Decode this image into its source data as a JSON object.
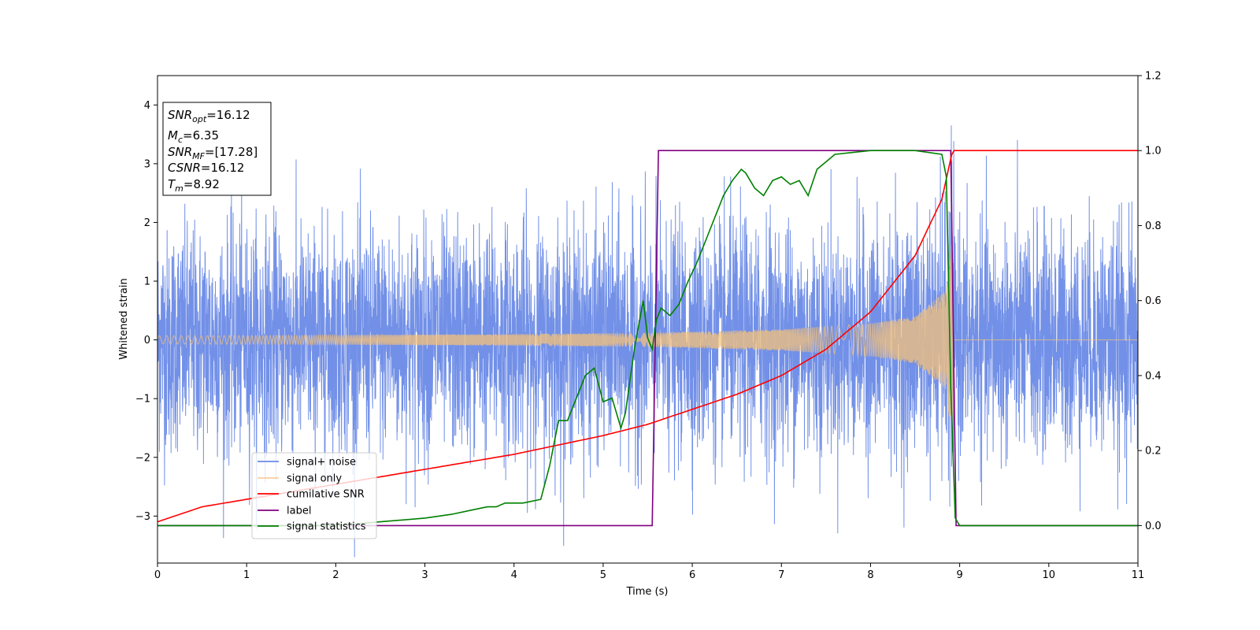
{
  "chart_data": {
    "type": "line",
    "xlabel": "Time (s)",
    "ylabel": "Whitened strain",
    "xlim": [
      0,
      11
    ],
    "ylim_left": [
      -3.8,
      4.5
    ],
    "ylim_right": [
      -0.1,
      1.2
    ],
    "x_ticks": [
      0,
      1,
      2,
      3,
      4,
      5,
      6,
      7,
      8,
      9,
      10,
      11
    ],
    "y_ticks_left": [
      -3,
      -2,
      -1,
      0,
      1,
      2,
      3,
      4
    ],
    "y_tick_labels_left": [
      "−3",
      "−2",
      "−1",
      "0",
      "1",
      "2",
      "3",
      "4"
    ],
    "y_ticks_right": [
      0.0,
      0.2,
      0.4,
      0.6,
      0.8,
      1.0,
      1.2
    ],
    "y_tick_labels_right": [
      "0.0",
      "0.2",
      "0.4",
      "0.6",
      "0.8",
      "1.0",
      "1.2"
    ],
    "grid": false,
    "legend_position": "lower-left",
    "info_box": [
      {
        "main": "SNR",
        "sub": "opt",
        "rest": "=16.12"
      },
      {
        "main": "M",
        "sub": "c",
        "rest": "=6.35"
      },
      {
        "main": "SNR",
        "sub": "MF",
        "rest": "=[17.28]"
      },
      {
        "main": "CSNR",
        "sub": "",
        "rest": "=16.12"
      },
      {
        "main": "T",
        "sub": "m",
        "rest": "=8.92"
      }
    ],
    "series": [
      {
        "name": "signal+ noise",
        "axis": "left",
        "color": "#6a8ae6",
        "description_values": {
          "noise_std": 0.95,
          "x_range": [
            0,
            11
          ]
        }
      },
      {
        "name": "signal only",
        "axis": "left",
        "color": "#f5c27a",
        "envelope": {
          "x": [
            0,
            2,
            4,
            5.5,
            7,
            8,
            8.5,
            8.85,
            8.92,
            9,
            11
          ],
          "amp": [
            0.07,
            0.08,
            0.1,
            0.12,
            0.18,
            0.28,
            0.4,
            0.85,
            1.9,
            0.0,
            0.0
          ]
        }
      },
      {
        "name": "cumilative SNR",
        "axis": "right",
        "color": "#ff0000",
        "x": [
          0,
          0.5,
          1,
          2,
          3,
          4,
          5,
          5.5,
          6,
          6.5,
          7,
          7.5,
          8,
          8.5,
          8.8,
          8.92,
          9,
          10,
          11
        ],
        "y": [
          0.01,
          0.05,
          0.07,
          0.11,
          0.15,
          0.19,
          0.24,
          0.27,
          0.31,
          0.35,
          0.4,
          0.47,
          0.57,
          0.72,
          0.87,
          1.0,
          1.0,
          1.0,
          1.0
        ]
      },
      {
        "name": "label",
        "axis": "right",
        "color": "#800080",
        "x": [
          0,
          5.55,
          5.62,
          8.9,
          8.96,
          11
        ],
        "y": [
          0.0,
          0.0,
          1.0,
          1.0,
          0.0,
          0.0
        ]
      },
      {
        "name": "signal statistics",
        "axis": "right",
        "color": "#008000",
        "x": [
          0,
          1,
          2,
          2.5,
          3,
          3.3,
          3.5,
          3.7,
          3.8,
          3.9,
          4.0,
          4.1,
          4.3,
          4.4,
          4.5,
          4.6,
          4.8,
          4.9,
          5.0,
          5.1,
          5.2,
          5.25,
          5.35,
          5.45,
          5.5,
          5.55,
          5.6,
          5.65,
          5.75,
          5.85,
          5.95,
          6.05,
          6.15,
          6.25,
          6.35,
          6.45,
          6.55,
          6.6,
          6.7,
          6.8,
          6.9,
          7.0,
          7.1,
          7.2,
          7.3,
          7.4,
          7.5,
          7.6,
          7.8,
          8.0,
          8.2,
          8.5,
          8.8,
          8.85,
          8.9,
          8.95,
          9.0,
          10,
          11
        ],
        "y": [
          0.0,
          0.0,
          0.0,
          0.01,
          0.02,
          0.03,
          0.04,
          0.05,
          0.05,
          0.06,
          0.06,
          0.06,
          0.07,
          0.16,
          0.28,
          0.28,
          0.4,
          0.42,
          0.33,
          0.34,
          0.26,
          0.3,
          0.47,
          0.6,
          0.5,
          0.47,
          0.55,
          0.58,
          0.56,
          0.59,
          0.65,
          0.7,
          0.76,
          0.82,
          0.88,
          0.92,
          0.95,
          0.94,
          0.9,
          0.88,
          0.92,
          0.93,
          0.91,
          0.92,
          0.88,
          0.95,
          0.97,
          0.99,
          0.995,
          1.0,
          1.0,
          1.0,
          0.99,
          0.93,
          0.37,
          0.02,
          0.0,
          0.0,
          0.0
        ]
      }
    ]
  }
}
